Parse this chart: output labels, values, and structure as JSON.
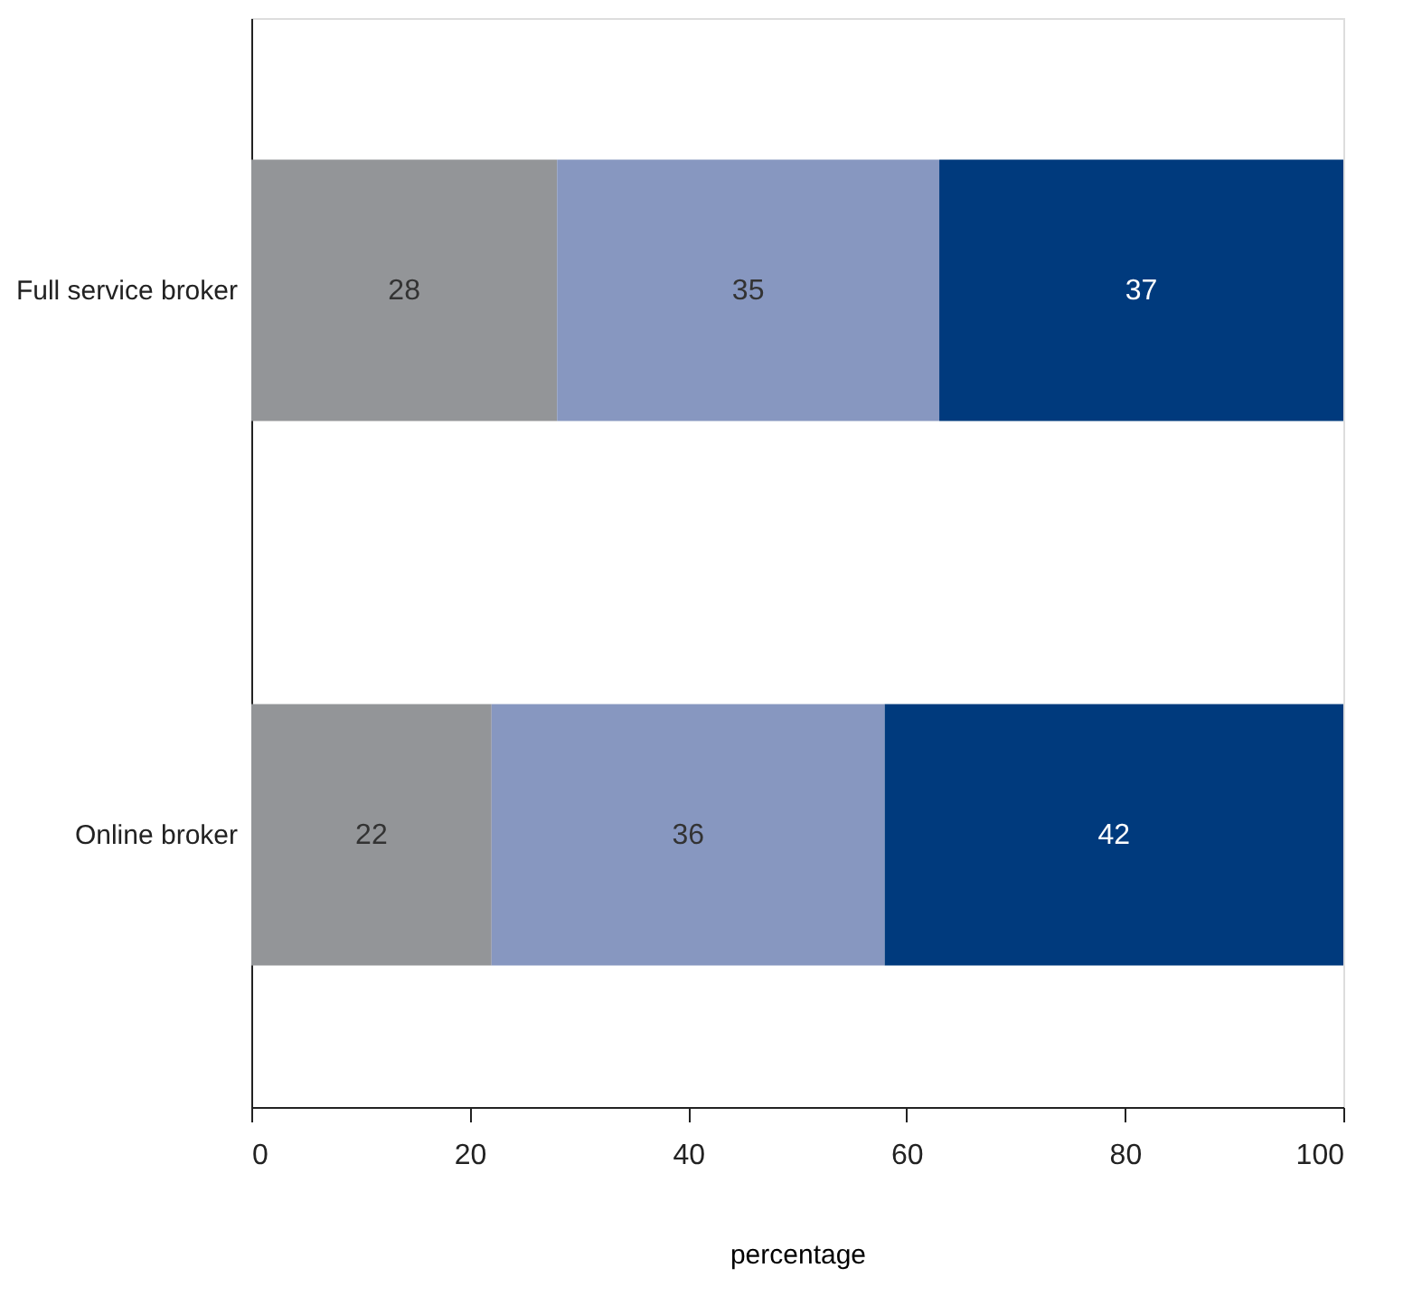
{
  "chart_data": {
    "type": "bar",
    "orientation": "horizontal",
    "stacked": true,
    "categories": [
      "Full service broker",
      "Online broker"
    ],
    "series": [
      {
        "color": "#939598",
        "values": [
          28,
          22
        ]
      },
      {
        "color": "#8797c0",
        "values": [
          35,
          36
        ]
      },
      {
        "color": "#003a7d",
        "values": [
          37,
          42
        ]
      }
    ],
    "xlim": [
      0,
      100
    ],
    "xticks": [
      0,
      20,
      40,
      60,
      80,
      100
    ],
    "xlabel": "percentage",
    "data_labels": true,
    "grid": false,
    "legend": false
  }
}
